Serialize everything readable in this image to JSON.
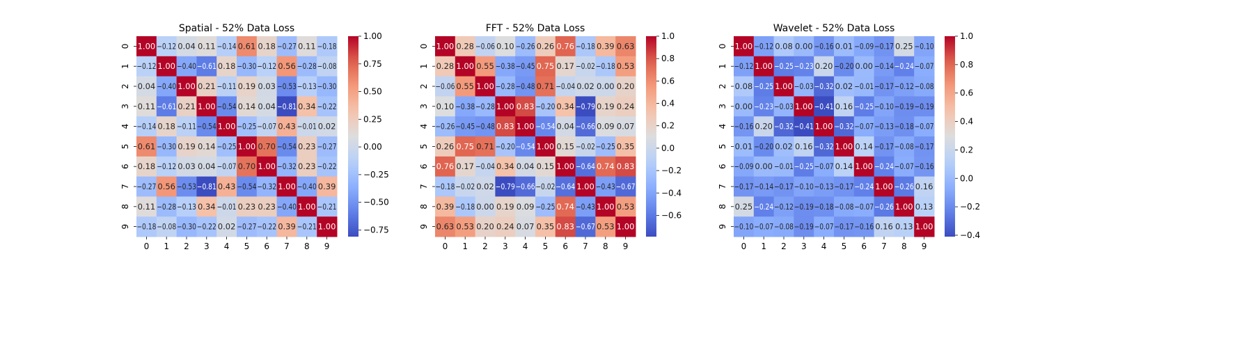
{
  "chart_data": [
    {
      "type": "heatmap",
      "title": "Spatial - 52% Data Loss",
      "x_ticks": [
        "0",
        "1",
        "2",
        "3",
        "4",
        "5",
        "6",
        "7",
        "8",
        "9"
      ],
      "y_ticks": [
        "0",
        "1",
        "2",
        "3",
        "4",
        "5",
        "6",
        "7",
        "8",
        "9"
      ],
      "colormap": "coolwarm",
      "vmin": -0.81,
      "vmax": 1.0,
      "colorbar_ticks": [
        -0.75,
        -0.5,
        -0.25,
        0.0,
        0.25,
        0.5,
        0.75,
        1.0
      ],
      "colorbar_tick_labels": [
        "−0.75",
        "−0.50",
        "−0.25",
        "0.00",
        "0.25",
        "0.50",
        "0.75",
        "1.00"
      ],
      "matrix": [
        [
          1.0,
          -0.12,
          0.04,
          0.11,
          -0.14,
          0.61,
          0.18,
          -0.27,
          0.11,
          -0.18
        ],
        [
          -0.12,
          1.0,
          -0.4,
          -0.61,
          0.18,
          -0.3,
          -0.12,
          0.56,
          -0.28,
          -0.08
        ],
        [
          0.04,
          -0.4,
          1.0,
          0.21,
          -0.11,
          0.19,
          0.03,
          -0.53,
          -0.13,
          -0.3
        ],
        [
          0.11,
          -0.61,
          0.21,
          1.0,
          -0.54,
          0.14,
          0.04,
          -0.81,
          0.34,
          -0.22
        ],
        [
          -0.14,
          0.18,
          -0.11,
          -0.54,
          1.0,
          -0.25,
          -0.07,
          0.43,
          -0.01,
          0.02
        ],
        [
          0.61,
          -0.3,
          0.19,
          0.14,
          -0.25,
          1.0,
          0.7,
          -0.54,
          0.23,
          -0.27
        ],
        [
          0.18,
          -0.12,
          0.03,
          0.04,
          -0.07,
          0.7,
          1.0,
          -0.32,
          0.23,
          -0.22
        ],
        [
          -0.27,
          0.56,
          -0.53,
          -0.81,
          0.43,
          -0.54,
          -0.32,
          1.0,
          -0.4,
          0.39
        ],
        [
          0.11,
          -0.28,
          -0.13,
          0.34,
          -0.01,
          0.23,
          0.23,
          -0.4,
          1.0,
          -0.21
        ],
        [
          -0.18,
          -0.08,
          -0.3,
          -0.22,
          0.02,
          -0.27,
          -0.22,
          0.39,
          -0.21,
          1.0
        ]
      ]
    },
    {
      "type": "heatmap",
      "title": "FFT - 52% Data Loss",
      "x_ticks": [
        "0",
        "1",
        "2",
        "3",
        "4",
        "5",
        "6",
        "7",
        "8",
        "9"
      ],
      "y_ticks": [
        "0",
        "1",
        "2",
        "3",
        "4",
        "5",
        "6",
        "7",
        "8",
        "9"
      ],
      "colormap": "coolwarm",
      "vmin": -0.79,
      "vmax": 1.0,
      "colorbar_ticks": [
        -0.6,
        -0.4,
        -0.2,
        0.0,
        0.2,
        0.4,
        0.6,
        0.8,
        1.0
      ],
      "colorbar_tick_labels": [
        "−0.6",
        "−0.4",
        "−0.2",
        "0.0",
        "0.2",
        "0.4",
        "0.6",
        "0.8",
        "1.0"
      ],
      "matrix": [
        [
          1.0,
          0.28,
          -0.06,
          0.1,
          -0.26,
          0.26,
          0.76,
          -0.18,
          0.39,
          0.63
        ],
        [
          0.28,
          1.0,
          0.55,
          -0.38,
          -0.45,
          0.75,
          0.17,
          -0.02,
          -0.18,
          0.53
        ],
        [
          -0.06,
          0.55,
          1.0,
          -0.28,
          -0.48,
          0.71,
          -0.04,
          0.02,
          0.0,
          0.2
        ],
        [
          0.1,
          -0.38,
          -0.28,
          1.0,
          0.83,
          -0.2,
          0.34,
          -0.79,
          0.19,
          0.24
        ],
        [
          -0.26,
          -0.45,
          -0.48,
          0.83,
          1.0,
          -0.54,
          0.04,
          -0.66,
          0.09,
          0.07
        ],
        [
          0.26,
          0.75,
          0.71,
          -0.2,
          -0.54,
          1.0,
          0.15,
          -0.02,
          -0.25,
          0.35
        ],
        [
          0.76,
          0.17,
          -0.04,
          0.34,
          0.04,
          0.15,
          1.0,
          -0.64,
          0.74,
          0.83
        ],
        [
          -0.18,
          -0.02,
          0.02,
          -0.79,
          -0.66,
          -0.02,
          -0.64,
          1.0,
          -0.43,
          -0.67
        ],
        [
          0.39,
          -0.18,
          0.0,
          0.19,
          0.09,
          -0.25,
          0.74,
          -0.43,
          1.0,
          0.53
        ],
        [
          0.63,
          0.53,
          0.2,
          0.24,
          0.07,
          0.35,
          0.83,
          -0.67,
          0.53,
          1.0
        ]
      ]
    },
    {
      "type": "heatmap",
      "title": "Wavelet - 52% Data Loss",
      "x_ticks": [
        "0",
        "1",
        "2",
        "3",
        "4",
        "5",
        "6",
        "7",
        "8",
        "9"
      ],
      "y_ticks": [
        "0",
        "1",
        "2",
        "3",
        "4",
        "5",
        "6",
        "7",
        "8",
        "9"
      ],
      "colormap": "coolwarm",
      "vmin": -0.41,
      "vmax": 1.0,
      "colorbar_ticks": [
        -0.4,
        -0.2,
        0.0,
        0.2,
        0.4,
        0.6,
        0.8,
        1.0
      ],
      "colorbar_tick_labels": [
        "−0.4",
        "−0.2",
        "0.0",
        "0.2",
        "0.4",
        "0.6",
        "0.8",
        "1.0"
      ],
      "matrix": [
        [
          1.0,
          -0.12,
          0.08,
          -0.0,
          -0.16,
          0.01,
          -0.09,
          -0.17,
          0.25,
          -0.1
        ],
        [
          -0.12,
          1.0,
          -0.25,
          -0.23,
          0.2,
          -0.2,
          -0.0,
          -0.14,
          -0.24,
          -0.07
        ],
        [
          0.08,
          -0.25,
          1.0,
          -0.03,
          -0.32,
          0.02,
          -0.01,
          -0.17,
          -0.12,
          -0.08
        ],
        [
          -0.0,
          -0.23,
          -0.03,
          1.0,
          -0.41,
          0.16,
          -0.25,
          -0.1,
          -0.19,
          -0.19
        ],
        [
          -0.16,
          0.2,
          -0.32,
          -0.41,
          1.0,
          -0.32,
          -0.07,
          -0.13,
          -0.18,
          -0.07
        ],
        [
          0.01,
          -0.2,
          0.02,
          0.16,
          -0.32,
          1.0,
          0.14,
          -0.17,
          -0.08,
          -0.17
        ],
        [
          -0.09,
          -0.0,
          -0.01,
          -0.25,
          -0.07,
          0.14,
          1.0,
          -0.24,
          -0.07,
          -0.16
        ],
        [
          -0.17,
          -0.14,
          -0.17,
          -0.1,
          -0.13,
          -0.17,
          -0.24,
          1.0,
          -0.26,
          0.16
        ],
        [
          0.25,
          -0.24,
          -0.12,
          -0.19,
          -0.18,
          -0.08,
          -0.07,
          -0.26,
          1.0,
          0.13
        ],
        [
          -0.1,
          -0.07,
          -0.08,
          -0.19,
          -0.07,
          -0.17,
          -0.16,
          0.16,
          0.13,
          1.0
        ]
      ]
    }
  ]
}
